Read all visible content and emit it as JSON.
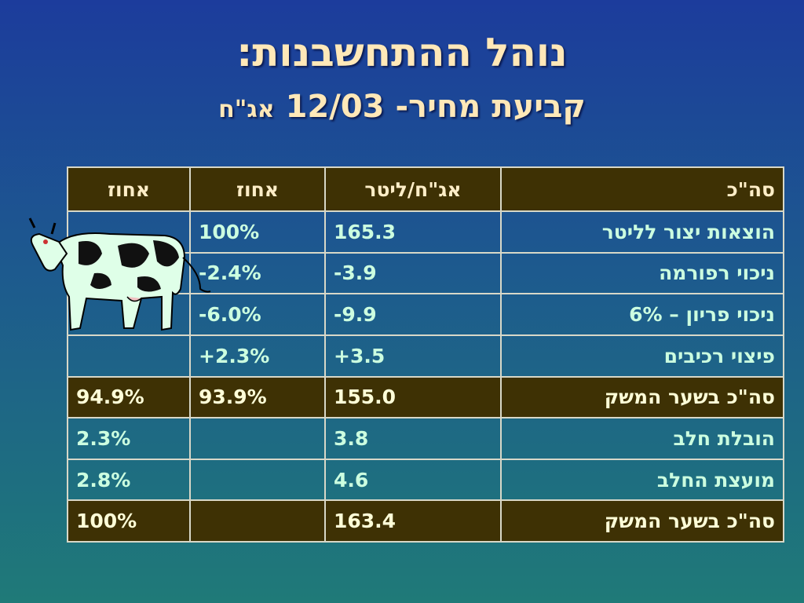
{
  "header": {
    "title": "נוהל ההתחשבנות:",
    "subtitle": "קביעת מחיר- 12/03",
    "subtitle_unit": "אג\"ח"
  },
  "table": {
    "columns": [
      "סה\"כ",
      "אג\"ח/ליטר",
      "אחוז",
      "אחוז"
    ],
    "rows": [
      {
        "label": "הוצאות יצור לליטר",
        "price": "165.3",
        "pct1": "100%",
        "total": false
      },
      {
        "label": "ניכוי רפורמה",
        "price": "-3.9",
        "pct1": "-2.4%",
        "total": false
      },
      {
        "label": "ניכוי פריון – 6%",
        "price": "-9.9",
        "pct1": "-6.0%",
        "total": false
      },
      {
        "label": "פיצוי רכיבים",
        "price": "+3.5",
        "pct1": "+2.3%",
        "total": false
      },
      {
        "label": "סה\"כ בשער המשק",
        "price": "155.0",
        "pct1": "93.9%",
        "pct2": "94.9%",
        "total": true
      },
      {
        "label": "הובלת חלב",
        "price": "3.8",
        "pct2": "2.3%",
        "total": false
      },
      {
        "label": "מועצת החלב",
        "price": "4.6",
        "pct2": "2.8%",
        "total": false
      },
      {
        "label": "סה\"כ בשער המשק",
        "price": "163.4",
        "pct2": "100%",
        "total": true
      }
    ]
  }
}
